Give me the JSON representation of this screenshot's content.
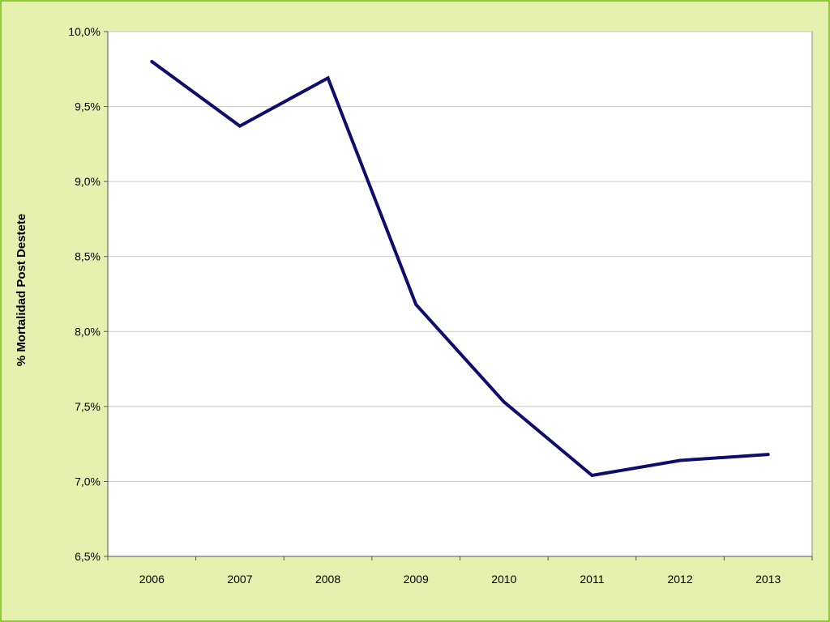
{
  "page": {
    "background_color": "#e6f1b0",
    "border_color": "#8fcc3a"
  },
  "chart_data": {
    "type": "line",
    "title": "",
    "xlabel": "",
    "ylabel": "% Mortalidad Post Destete",
    "categories": [
      "2006",
      "2007",
      "2008",
      "2009",
      "2010",
      "2011",
      "2012",
      "2013"
    ],
    "series": [
      {
        "values": [
          9.8,
          9.37,
          9.69,
          8.18,
          7.53,
          7.04,
          7.14,
          7.18
        ],
        "color": "#0d0d6e"
      }
    ],
    "ylim": [
      6.5,
      10.0
    ],
    "y_ticks": [
      6.5,
      7.0,
      7.5,
      8.0,
      8.5,
      9.0,
      9.5,
      10.0
    ],
    "y_tick_labels": [
      "6,5%",
      "7,0%",
      "7,5%",
      "8,0%",
      "8,5%",
      "9,0%",
      "9,5%",
      "10,0%"
    ],
    "grid": "horizontal",
    "legend": "none",
    "plot_background": "#ffffff",
    "gridline_color": "#c8c8c8"
  }
}
